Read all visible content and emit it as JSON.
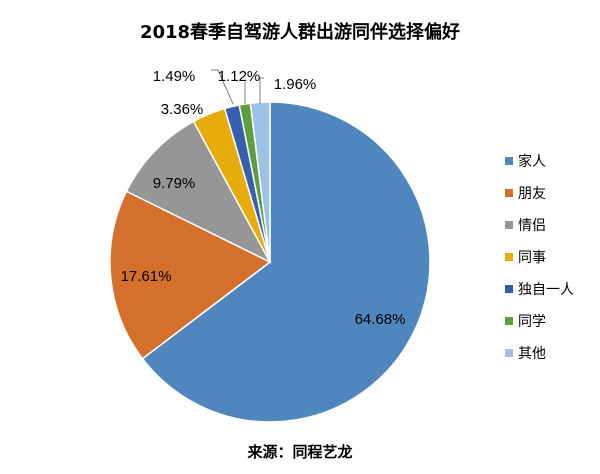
{
  "chart_data": {
    "type": "pie",
    "title": "2018春季自驾游人群出游同伴选择偏好",
    "source": "来源：同程艺龙",
    "legend_position": "right",
    "start_angle": "top, clockwise",
    "slices": [
      {
        "name": "家人",
        "value": 64.68,
        "label": "64.68%",
        "color": "#4F86BE"
      },
      {
        "name": "朋友",
        "value": 17.61,
        "label": "17.61%",
        "color": "#D5702C"
      },
      {
        "name": "情侣",
        "value": 9.79,
        "label": "9.79%",
        "color": "#969696"
      },
      {
        "name": "同事",
        "value": 3.36,
        "label": "3.36%",
        "color": "#E5AC0B"
      },
      {
        "name": "独自一人",
        "value": 1.49,
        "label": "1.49%",
        "color": "#3460AD"
      },
      {
        "name": "同学",
        "value": 1.12,
        "label": "1.12%",
        "color": "#5F9E3D"
      },
      {
        "name": "其他",
        "value": 1.96,
        "label": "1.96%",
        "color": "#9EC2E6"
      }
    ]
  }
}
